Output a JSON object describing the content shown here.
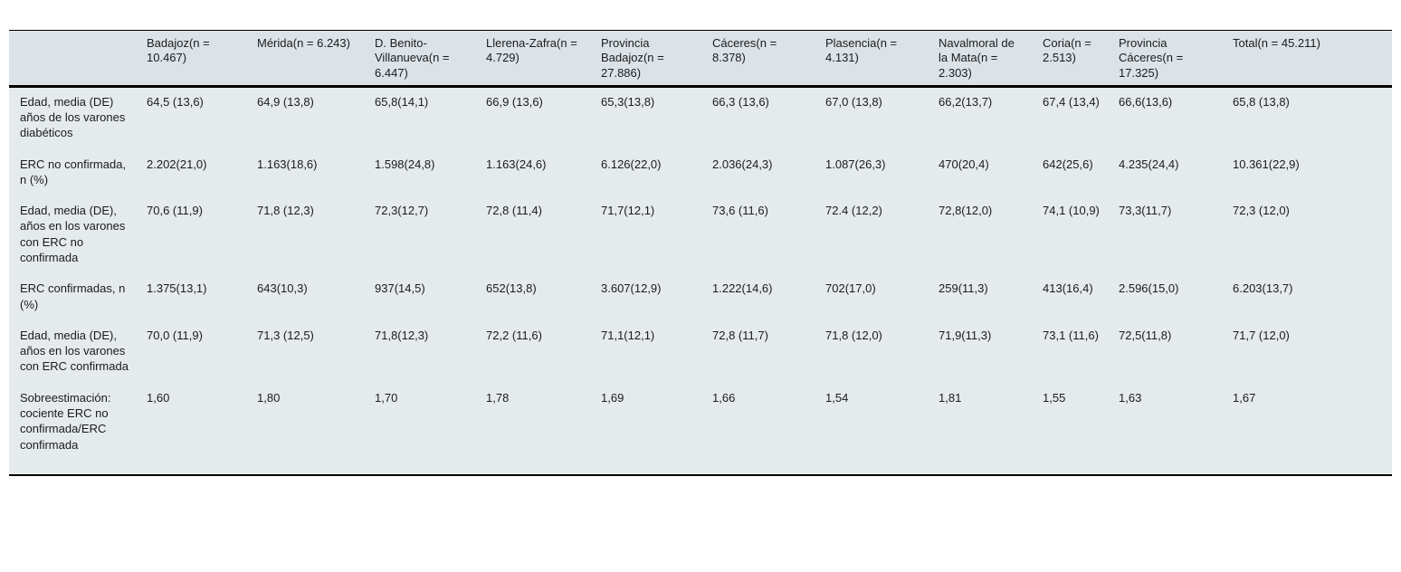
{
  "table": {
    "corner_label": "",
    "columns": [
      "Badajoz(n = 10.467)",
      "Mérida(n = 6.243)",
      "D. Benito-Villanueva(n = 6.447)",
      "Llerena-Zafra(n = 4.729)",
      "Provincia Badajoz(n = 27.886)",
      "Cáceres(n = 8.378)",
      "Plasencia(n = 4.131)",
      "Navalmoral de la Mata(n = 2.303)",
      "Coria(n = 2.513)",
      "Provincia Cáceres(n = 17.325)",
      "Total(n = 45.211)"
    ],
    "rows": [
      {
        "label": "Edad, media (DE) años de los varones diabéticos",
        "values": [
          "64,5 (13,6)",
          "64,9 (13,8)",
          "65,8(14,1)",
          "66,9 (13,6)",
          "65,3(13,8)",
          "66,3 (13,6)",
          "67,0 (13,8)",
          "66,2(13,7)",
          "67,4 (13,4)",
          "66,6(13,6)",
          "65,8 (13,8)"
        ]
      },
      {
        "label": "ERC no confirmada, n (%)",
        "values": [
          "2.202(21,0)",
          "1.163(18,6)",
          "1.598(24,8)",
          "1.163(24,6)",
          "6.126(22,0)",
          "2.036(24,3)",
          "1.087(26,3)",
          "470(20,4)",
          "642(25,6)",
          "4.235(24,4)",
          "10.361(22,9)"
        ]
      },
      {
        "label": "Edad, media (DE), años en los varones con ERC no confirmada",
        "values": [
          "70,6 (11,9)",
          "71,8 (12,3)",
          "72,3(12,7)",
          "72,8 (11,4)",
          "71,7(12,1)",
          "73,6 (11,6)",
          "72.4 (12,2)",
          "72,8(12,0)",
          "74,1 (10,9)",
          "73,3(11,7)",
          "72,3 (12,0)"
        ]
      },
      {
        "label": "ERC confirmadas, n (%)",
        "values": [
          "1.375(13,1)",
          "643(10,3)",
          "937(14,5)",
          "652(13,8)",
          "3.607(12,9)",
          "1.222(14,6)",
          "702(17,0)",
          "259(11,3)",
          "413(16,4)",
          "2.596(15,0)",
          "6.203(13,7)"
        ]
      },
      {
        "label": "Edad, media (DE), años en los varones con ERC confirmada",
        "values": [
          "70,0 (11,9)",
          "71,3 (12,5)",
          "71,8(12,3)",
          "72,2 (11,6)",
          "71,1(12,1)",
          "72,8 (11,7)",
          "71,8 (12,0)",
          "71,9(11,3)",
          "73,1 (11,6)",
          "72,5(11,8)",
          "71,7 (12,0)"
        ]
      },
      {
        "label": "Sobreestimación: cociente ERC no confirmada/ERC confirmada",
        "values": [
          "1,60",
          "1,80",
          "1,70",
          "1,78",
          "1,69",
          "1,66",
          "1,54",
          "1,81",
          "1,55",
          "1,63",
          "1,67"
        ]
      }
    ],
    "colors": {
      "header_bg": "#dce3e8",
      "body_bg": "#e5eaec",
      "rule": "#000000"
    }
  }
}
